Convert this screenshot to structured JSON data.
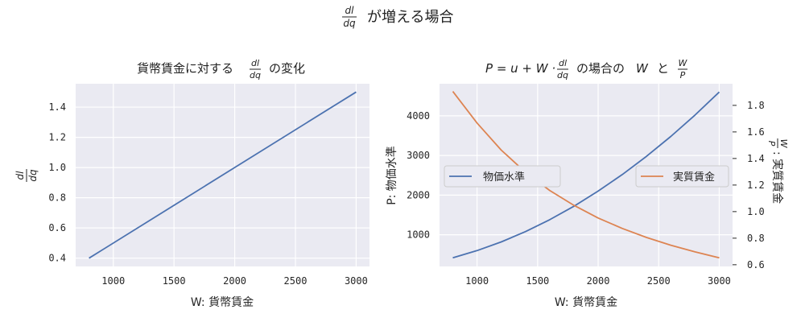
{
  "suptitle": {
    "frac_num": "dl",
    "frac_den": "dq",
    "text": "が増える場合"
  },
  "chart_data": [
    {
      "type": "line",
      "title": {
        "prefix": "貨幣賃金に対する",
        "frac_num": "dl",
        "frac_den": "dq",
        "suffix": "の変化"
      },
      "xlabel": "W: 貨幣賃金",
      "ylabel": {
        "frac_num": "dl",
        "frac_den": "dq"
      },
      "xlim": [
        690,
        3110
      ],
      "ylim": [
        0.345,
        1.555
      ],
      "xticks": [
        1000,
        1500,
        2000,
        2500,
        3000
      ],
      "yticks": [
        0.4,
        0.6,
        0.8,
        1.0,
        1.2,
        1.4
      ],
      "ytick_labels": [
        "0.4",
        "0.6",
        "0.8",
        "1.0",
        "1.2",
        "1.4"
      ],
      "grid": true,
      "series": [
        {
          "color": "#4c72b0",
          "x": [
            800,
            3000
          ],
          "y": [
            0.4,
            1.5
          ]
        }
      ]
    },
    {
      "type": "line",
      "title": {
        "eq": "P = u + W ·",
        "frac_num": "dl",
        "frac_den": "dq",
        "mid": "の場合の",
        "w": "W",
        "to": "と",
        "ratio_num": "W",
        "ratio_den": "P"
      },
      "xlabel": "W: 貨幣賃金",
      "ylabel": "P: 物価水準",
      "y2label": {
        "frac_num": "W",
        "frac_den": "P",
        "text": ": 実質賃金"
      },
      "xlim": [
        690,
        3110
      ],
      "ylim": [
        200,
        4810
      ],
      "y2lim": [
        0.587,
        1.963
      ],
      "xticks": [
        1000,
        1500,
        2000,
        2500,
        3000
      ],
      "yticks": [
        1000,
        2000,
        3000,
        4000
      ],
      "y2ticks": [
        0.6,
        0.8,
        1.0,
        1.2,
        1.4,
        1.6,
        1.8
      ],
      "grid": true,
      "legend_left": {
        "label": "物価水準",
        "color": "#4c72b0",
        "placement": "center-left"
      },
      "legend_right": {
        "label": "実質賃金",
        "color": "#dd8452",
        "placement": "center-right"
      },
      "series": [
        {
          "name": "物価水準",
          "axis": "left",
          "color": "#4c72b0",
          "x": [
            800,
            1000,
            1200,
            1400,
            1600,
            1800,
            2000,
            2200,
            2400,
            2600,
            2800,
            3000
          ],
          "y": [
            420,
            600,
            820,
            1080,
            1380,
            1720,
            2100,
            2520,
            2980,
            3480,
            4020,
            4600
          ]
        },
        {
          "name": "実質賃金",
          "axis": "right",
          "color": "#dd8452",
          "x": [
            800,
            1000,
            1200,
            1400,
            1600,
            1800,
            2000,
            2200,
            2400,
            2600,
            2800,
            3000
          ],
          "y": [
            1.905,
            1.667,
            1.463,
            1.296,
            1.159,
            1.047,
            0.952,
            0.873,
            0.805,
            0.747,
            0.697,
            0.652
          ]
        }
      ]
    }
  ]
}
